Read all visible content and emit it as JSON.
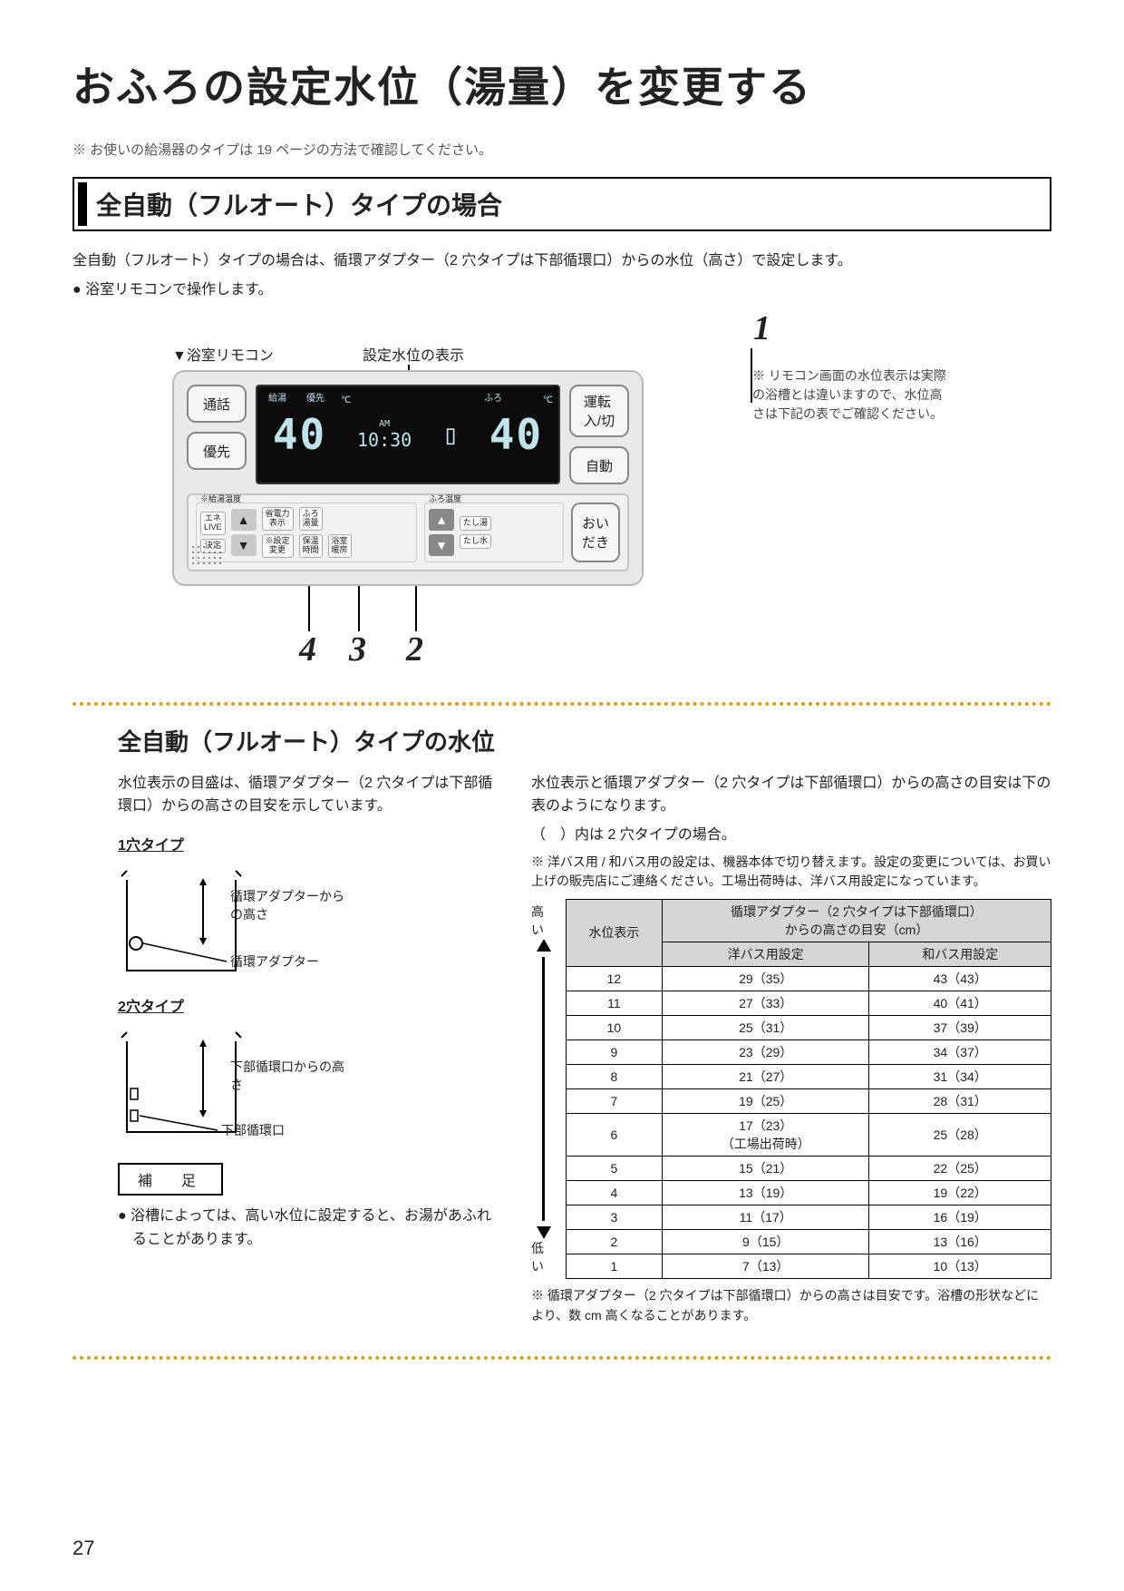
{
  "title": "おふろの設定水位（湯量）を変更する",
  "top_note": "※ お使いの給湯器のタイプは 19 ページの方法で確認してください。",
  "section_heading": "全自動（フルオート）タイプの場合",
  "intro_para": "全自動（フルオート）タイプの場合は、循環アダプター（2 穴タイプは下部循環口）からの水位（高さ）で設定します。",
  "intro_bullet": "● 浴室リモコンで操作します。",
  "remote": {
    "caption": "▼浴室リモコン",
    "disp_label": "設定水位の表示",
    "callouts": {
      "c1": "1",
      "c2": "2",
      "c3": "3",
      "c4": "4"
    },
    "buttons": {
      "talk": "通話",
      "priority": "優先",
      "power": "運転\n入/切",
      "auto": "自動",
      "reheat": "おい\nだき",
      "ene": "エネ\nLIVE",
      "decide": "決定",
      "power_disp": "省電力\n表示",
      "set_change": "※設定\n変更",
      "hot_amount": "ふろ\n湯量",
      "keep_time": "保温\n時間",
      "bath_heat": "浴室\n暖房",
      "add_hot": "たし湯",
      "add_water": "たし水",
      "hot_temp_lbl": "※給湯温度",
      "bath_temp_lbl": "ふろ温度"
    },
    "lcd": {
      "hot_label": "給湯",
      "save_label": "優先",
      "am": "AM",
      "temp_left": "40",
      "time": "10:30",
      "bath_label": "ふろ",
      "temp_right": "40",
      "unit": "℃"
    },
    "side_note": "※ リモコン画面の水位表示は実際の浴槽とは違いますので、水位高さは下記の表でご確認ください。"
  },
  "sub_heading": "全自動（フルオート）タイプの水位",
  "left_col": {
    "para": "水位表示の目盛は、循環アダプター（2 穴タイプは下部循環口）からの高さの目安を示しています。",
    "t1": "1穴タイプ",
    "t1_labels": {
      "a": "循環アダプターからの高さ",
      "b": "循環アダプター"
    },
    "t2": "2穴タイプ",
    "t2_labels": {
      "a": "下部循環口からの高さ",
      "b": "下部循環口"
    },
    "supp": "補　足",
    "supp_bullet": "● 浴槽によっては、高い水位に設定すると、お湯があふれることがあります。"
  },
  "right_col": {
    "para1": "水位表示と循環アダプター（2 穴タイプは下部循環口）からの高さの目安は下の表のようになります。",
    "para2": "（　）内は 2 穴タイプの場合。",
    "note": "※ 洋バス用 / 和バス用の設定は、機器本体で切り替えます。設定の変更については、お買い上げの販売店にご連絡ください。工場出荷時は、洋バス用設定になっています。",
    "arrow_high": "高い",
    "arrow_low": "低い",
    "table": {
      "head_level": "水位表示",
      "head_span": "循環アダプター（2 穴タイプは下部循環口）\nからの高さの目安（cm）",
      "head_yo": "洋バス用設定",
      "head_wa": "和バス用設定",
      "rows": [
        {
          "lv": "12",
          "yo": "29（35）",
          "wa": "43（43）"
        },
        {
          "lv": "11",
          "yo": "27（33）",
          "wa": "40（41）"
        },
        {
          "lv": "10",
          "yo": "25（31）",
          "wa": "37（39）"
        },
        {
          "lv": "9",
          "yo": "23（29）",
          "wa": "34（37）"
        },
        {
          "lv": "8",
          "yo": "21（27）",
          "wa": "31（34）"
        },
        {
          "lv": "7",
          "yo": "19（25）",
          "wa": "28（31）"
        },
        {
          "lv": "6",
          "yo": "17（23）\n（工場出荷時）",
          "wa": "25（28）"
        },
        {
          "lv": "5",
          "yo": "15（21）",
          "wa": "22（25）"
        },
        {
          "lv": "4",
          "yo": "13（19）",
          "wa": "19（22）"
        },
        {
          "lv": "3",
          "yo": "11（17）",
          "wa": "16（19）"
        },
        {
          "lv": "2",
          "yo": "9（15）",
          "wa": "13（16）"
        },
        {
          "lv": "1",
          "yo": "7（13）",
          "wa": "10（13）"
        }
      ]
    },
    "foot_note": "※ 循環アダプター（2 穴タイプは下部循環口）からの高さは目安です。浴槽の形状などにより、数 cm 高くなることがあります。"
  },
  "page_number": "27"
}
